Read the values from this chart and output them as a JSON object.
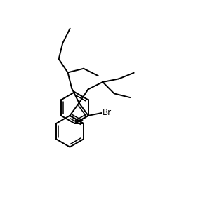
{
  "background": "#ffffff",
  "line_color": "#000000",
  "line_width": 1.4,
  "figsize": [
    2.92,
    3.08
  ],
  "dpi": 100,
  "br_label": "Br",
  "br_fontsize": 8.5
}
